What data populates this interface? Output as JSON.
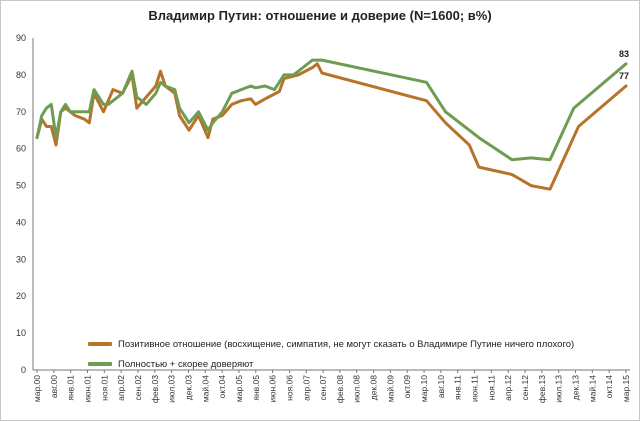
{
  "chart_data": {
    "type": "line",
    "title": "Владимир Путин: отношение и доверие (N=1600; в%)",
    "xlabel": "",
    "ylabel": "",
    "ylim": [
      0,
      90
    ],
    "yticks": [
      0,
      10,
      20,
      30,
      40,
      50,
      60,
      70,
      80,
      90
    ],
    "grid": false,
    "legend_position": "bottom-left",
    "x_ticks": [
      {
        "label": "мар.00",
        "t": 0
      },
      {
        "label": "авг.00",
        "t": 5
      },
      {
        "label": "янв.01",
        "t": 10
      },
      {
        "label": "июн.01",
        "t": 15
      },
      {
        "label": "ноя.01",
        "t": 20
      },
      {
        "label": "апр.02",
        "t": 25
      },
      {
        "label": "сен.02",
        "t": 30
      },
      {
        "label": "фев.03",
        "t": 35
      },
      {
        "label": "июл.03",
        "t": 40
      },
      {
        "label": "дек.03",
        "t": 45
      },
      {
        "label": "май.04",
        "t": 50
      },
      {
        "label": "окт.04",
        "t": 55
      },
      {
        "label": "мар.05",
        "t": 60
      },
      {
        "label": "янв.05",
        "t": 65
      },
      {
        "label": "июн.06",
        "t": 70
      },
      {
        "label": "ноя.06",
        "t": 75
      },
      {
        "label": "апр.07",
        "t": 80
      },
      {
        "label": "сен.07",
        "t": 85
      },
      {
        "label": "фев.08",
        "t": 90
      },
      {
        "label": "июл.08",
        "t": 95
      },
      {
        "label": "дек.08",
        "t": 100
      },
      {
        "label": "май.09",
        "t": 105
      },
      {
        "label": "окт.09",
        "t": 110
      },
      {
        "label": "мар.10",
        "t": 115
      },
      {
        "label": "авг.10",
        "t": 120
      },
      {
        "label": "янв.11",
        "t": 125
      },
      {
        "label": "июн.11",
        "t": 130
      },
      {
        "label": "ноя.11",
        "t": 135
      },
      {
        "label": "апр.12",
        "t": 140
      },
      {
        "label": "сен.12",
        "t": 145
      },
      {
        "label": "фев.13",
        "t": 150
      },
      {
        "label": "июл.13",
        "t": 155
      },
      {
        "label": "дек.13",
        "t": 160
      },
      {
        "label": "май.14",
        "t": 165
      },
      {
        "label": "окт.14",
        "t": 170
      },
      {
        "label": "мар.15",
        "t": 175
      }
    ],
    "series": [
      {
        "name": "Позитивное отношение (восхищение, симпатия, не могут сказать о Владимире Путине ничего плохого)",
        "color": "#b8732a",
        "points": [
          [
            0,
            63
          ],
          [
            1,
            68
          ],
          [
            2,
            66
          ],
          [
            3,
            66
          ],
          [
            4,
            61
          ],
          [
            5,
            70
          ],
          [
            6,
            71
          ],
          [
            7,
            70
          ],
          [
            8,
            69
          ],
          [
            10,
            68
          ],
          [
            11,
            67
          ],
          [
            12,
            75
          ],
          [
            14,
            70
          ],
          [
            16,
            76
          ],
          [
            18,
            75
          ],
          [
            20,
            80
          ],
          [
            21,
            71
          ],
          [
            23,
            74
          ],
          [
            25,
            77
          ],
          [
            26,
            81
          ],
          [
            27,
            77
          ],
          [
            29,
            75
          ],
          [
            30,
            69
          ],
          [
            32,
            65
          ],
          [
            34,
            69
          ],
          [
            36,
            63
          ],
          [
            37,
            68
          ],
          [
            39,
            69
          ],
          [
            41,
            72
          ],
          [
            43,
            73
          ],
          [
            45,
            73.5
          ],
          [
            46,
            72
          ],
          [
            48,
            73.5
          ],
          [
            51,
            75.5
          ],
          [
            52,
            79
          ],
          [
            55,
            80
          ],
          [
            58,
            82
          ],
          [
            59,
            83
          ],
          [
            60,
            80.5
          ],
          [
            82,
            73
          ],
          [
            86,
            67
          ],
          [
            91,
            61
          ],
          [
            93,
            55
          ],
          [
            100,
            53
          ],
          [
            104,
            50
          ],
          [
            108,
            49
          ],
          [
            114,
            66
          ],
          [
            124,
            77
          ]
        ]
      },
      {
        "name": "Полностью + скорее доверяют",
        "color": "#6e9c53",
        "points": [
          [
            0,
            63
          ],
          [
            1,
            69
          ],
          [
            2,
            71
          ],
          [
            3,
            72
          ],
          [
            4,
            63
          ],
          [
            5,
            70
          ],
          [
            6,
            72
          ],
          [
            7,
            70
          ],
          [
            8,
            70
          ],
          [
            10,
            70
          ],
          [
            11,
            70
          ],
          [
            12,
            76
          ],
          [
            14,
            72
          ],
          [
            15,
            72
          ],
          [
            18,
            75
          ],
          [
            20,
            81
          ],
          [
            21,
            74
          ],
          [
            23,
            72
          ],
          [
            25,
            75
          ],
          [
            26,
            78
          ],
          [
            27,
            77
          ],
          [
            29,
            76
          ],
          [
            30,
            71
          ],
          [
            32,
            67
          ],
          [
            34,
            70
          ],
          [
            36,
            65
          ],
          [
            37,
            67
          ],
          [
            39,
            70
          ],
          [
            41,
            75
          ],
          [
            43,
            76
          ],
          [
            45,
            77
          ],
          [
            46,
            76.5
          ],
          [
            48,
            77
          ],
          [
            50,
            76
          ],
          [
            52,
            80
          ],
          [
            54,
            80
          ],
          [
            56,
            82
          ],
          [
            58,
            84
          ],
          [
            60,
            84
          ],
          [
            82,
            78
          ],
          [
            86,
            70
          ],
          [
            91,
            65
          ],
          [
            93,
            63
          ],
          [
            100,
            57
          ],
          [
            104,
            57.5
          ],
          [
            108,
            57
          ],
          [
            113,
            71
          ],
          [
            124,
            83
          ]
        ]
      }
    ],
    "annotations": [
      {
        "series_index": 1,
        "text": "83",
        "t": 124,
        "value": 83
      },
      {
        "series_index": 0,
        "text": "77",
        "t": 124,
        "value": 77
      }
    ]
  }
}
